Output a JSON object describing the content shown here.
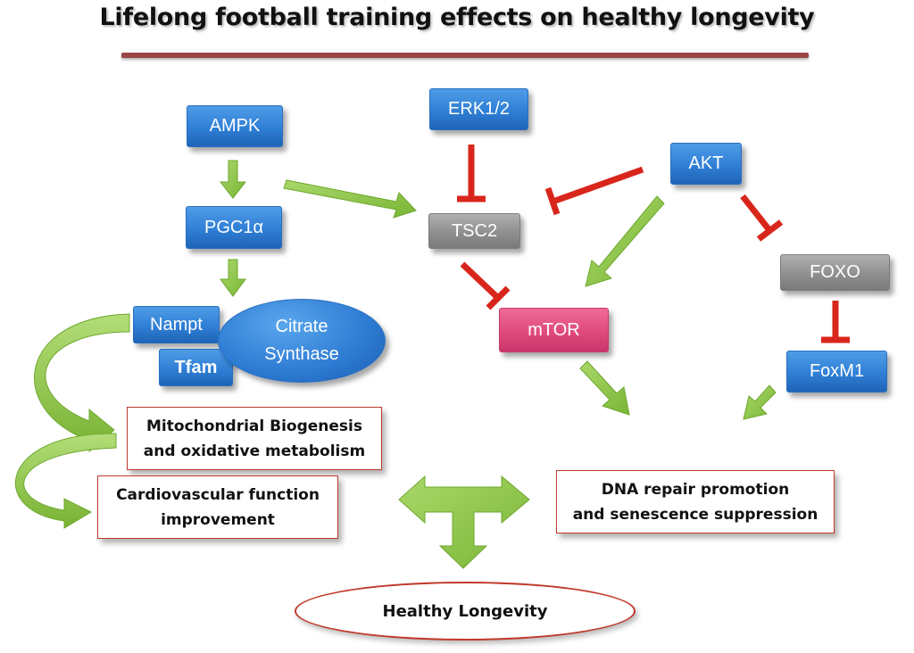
{
  "title": "Lifelong football training effects on healthy longevity",
  "nodes": {
    "ampk": "AMPK",
    "erk": "ERK1/2",
    "akt": "AKT",
    "pgc1a": "PGC1α",
    "tsc2": "TSC2",
    "foxo": "FOXO",
    "nampt": "Nampt",
    "citrate_line1": "Citrate",
    "citrate_line2": "Synthase",
    "tfam": "Tfam",
    "mtor": "mTOR",
    "foxm1": "FoxM1"
  },
  "outcomes": {
    "mito_line1": "Mitochondrial Biogenesis",
    "mito_line2": "and oxidative metabolism",
    "cardio_line1": "Cardiovascular function",
    "cardio_line2": "improvement",
    "dna_line1": "DNA repair promotion",
    "dna_line2": "and senescence suppression",
    "longevity": "Healthy Longevity"
  },
  "colors": {
    "activation_arrow": "#8cc63f",
    "inhibition": "#d9261c",
    "node_blue": "#2f7fd6",
    "node_gray": "#8f8f8f",
    "node_pink": "#e04a7d",
    "outcome_border": "#c0392b",
    "title_rule": "#9b4545"
  }
}
